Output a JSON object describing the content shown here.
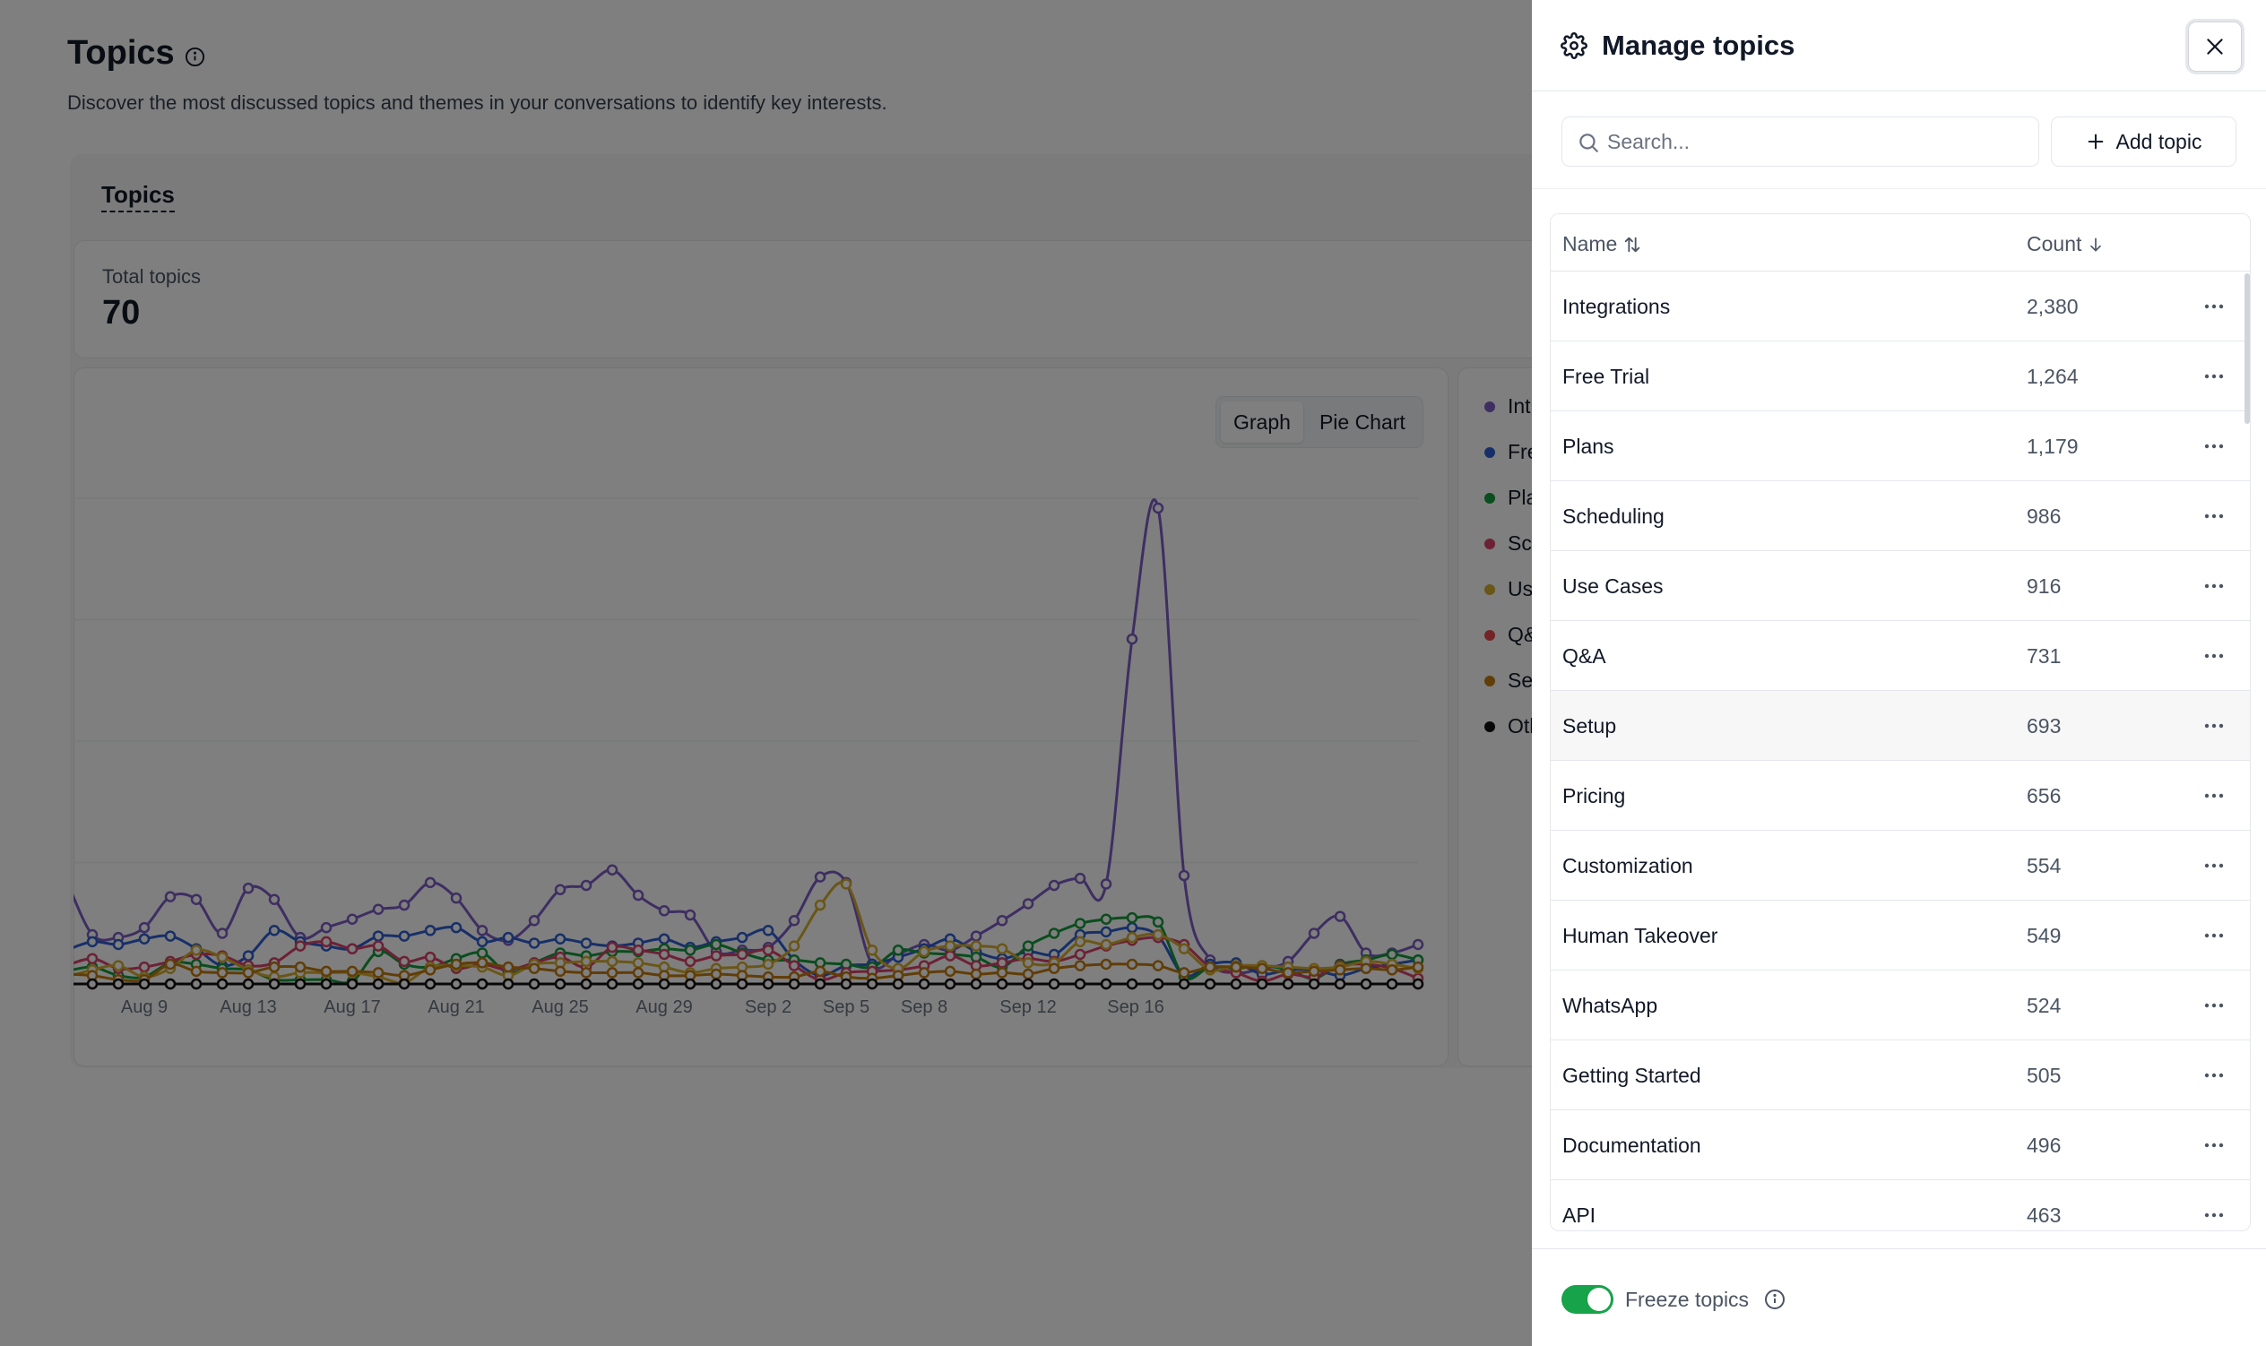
{
  "page": {
    "title": "Topics",
    "subtitle": "Discover the most discussed topics and themes in your conversations to identify key interests.",
    "tab_label": "Topics",
    "total_label": "Total topics",
    "total_value": "70"
  },
  "view_toggle": {
    "graph": "Graph",
    "pie": "Pie Chart",
    "active": "graph"
  },
  "legend": [
    {
      "label": "Int",
      "color": "#7c5cc4"
    },
    {
      "label": "Fre",
      "color": "#2f5fd0"
    },
    {
      "label": "Pla",
      "color": "#159a3c"
    },
    {
      "label": "Sc",
      "color": "#d8436b"
    },
    {
      "label": "Us",
      "color": "#d5ad2f"
    },
    {
      "label": "Q&",
      "color": "#e5484d"
    },
    {
      "label": "Se",
      "color": "#c27b0e"
    },
    {
      "label": "Oth",
      "color": "#111111"
    }
  ],
  "chart_data": {
    "type": "line",
    "x_tick_labels": [
      "Aug 9",
      "Aug 13",
      "Aug 17",
      "Aug 21",
      "Aug 25",
      "Aug 29",
      "Sep 2",
      "Sep 5",
      "Sep 8",
      "Sep 12",
      "Sep 16"
    ],
    "gridlines": true,
    "legend_position": "right",
    "series": [
      {
        "color": "#7c5cc4",
        "values": [
          74,
          35,
          33,
          40,
          62,
          60,
          36,
          68,
          60,
          33,
          40,
          46,
          53,
          56,
          72,
          61,
          38,
          31,
          45,
          67,
          70,
          81,
          63,
          52,
          49,
          23,
          24,
          26,
          45,
          76,
          72,
          14,
          21,
          28,
          24,
          34,
          45,
          57,
          70,
          75,
          71,
          245,
          338,
          77,
          17,
          8,
          11,
          16,
          36,
          48,
          22,
          22,
          28
        ]
      },
      {
        "color": "#2f5fd0",
        "values": [
          24,
          30,
          28,
          32,
          34,
          25,
          13,
          20,
          38,
          30,
          27,
          25,
          34,
          34,
          38,
          40,
          30,
          33,
          29,
          32,
          29,
          27,
          29,
          32,
          26,
          30,
          33,
          38,
          17,
          6,
          13,
          14,
          19,
          25,
          32,
          23,
          18,
          23,
          21,
          35,
          37,
          40,
          34,
          6,
          14,
          15,
          7,
          10,
          10,
          6,
          11,
          14,
          17
        ]
      },
      {
        "color": "#159a3c",
        "values": [
          9,
          12,
          6,
          5,
          15,
          14,
          11,
          10,
          3,
          3,
          3,
          2,
          23,
          14,
          12,
          18,
          22,
          8,
          15,
          22,
          20,
          23,
          23,
          25,
          24,
          28,
          22,
          17,
          17,
          15,
          14,
          12,
          24,
          22,
          21,
          19,
          12,
          27,
          36,
          43,
          46,
          47,
          44,
          5,
          12,
          11,
          13,
          10,
          4,
          14,
          17,
          21,
          17
        ]
      },
      {
        "color": "#d8436b",
        "values": [
          13,
          18,
          11,
          12,
          16,
          21,
          20,
          13,
          15,
          27,
          30,
          25,
          27,
          16,
          19,
          11,
          14,
          10,
          15,
          19,
          12,
          26,
          24,
          21,
          16,
          20,
          21,
          24,
          13,
          3,
          8,
          9,
          10,
          13,
          20,
          13,
          15,
          18,
          16,
          21,
          27,
          31,
          33,
          28,
          12,
          8,
          2,
          7,
          5,
          13,
          14,
          11,
          4
        ]
      },
      {
        "color": "#d5ad2f",
        "values": [
          5,
          10,
          13,
          5,
          11,
          24,
          19,
          10,
          5,
          8,
          8,
          8,
          5,
          1,
          12,
          13,
          12,
          6,
          14,
          15,
          16,
          16,
          15,
          12,
          8,
          11,
          12,
          14,
          27,
          56,
          71,
          24,
          11,
          23,
          27,
          27,
          25,
          15,
          15,
          30,
          28,
          33,
          35,
          25,
          10,
          13,
          13,
          12,
          11,
          12,
          16,
          14,
          11
        ]
      },
      {
        "color": "#e5484d",
        "values": [
          0,
          0,
          0,
          0,
          0,
          0,
          0,
          0,
          0,
          0,
          0,
          0,
          0,
          0,
          0,
          0,
          0,
          0,
          0,
          0,
          0,
          0,
          0,
          0,
          0,
          0,
          0,
          0,
          0,
          0,
          0,
          0,
          0,
          0,
          0,
          0,
          0,
          0,
          0,
          0,
          0,
          0,
          0,
          0,
          0,
          0,
          0,
          0,
          0,
          0,
          0,
          0,
          0
        ]
      },
      {
        "color": "#c27b0e",
        "values": [
          7,
          6,
          3,
          3,
          14,
          9,
          8,
          8,
          12,
          12,
          9,
          9,
          8,
          6,
          10,
          14,
          15,
          12,
          11,
          9,
          8,
          8,
          8,
          6,
          6,
          7,
          6,
          5,
          5,
          9,
          5,
          4,
          6,
          8,
          9,
          7,
          8,
          7,
          11,
          13,
          14,
          14,
          13,
          8,
          12,
          12,
          11,
          8,
          9,
          10,
          11,
          10,
          12
        ]
      },
      {
        "color": "#111111",
        "values": [
          0,
          0,
          0,
          0,
          0,
          0,
          0,
          0,
          0,
          0,
          0,
          0,
          0,
          0,
          0,
          0,
          0,
          0,
          0,
          0,
          0,
          0,
          0,
          0,
          0,
          0,
          0,
          0,
          0,
          0,
          0,
          0,
          0,
          0,
          0,
          0,
          0,
          0,
          0,
          0,
          0,
          0,
          0,
          0,
          0,
          0,
          0,
          0,
          0,
          0,
          0,
          0,
          0
        ]
      }
    ]
  },
  "drawer": {
    "title": "Manage topics",
    "search_placeholder": "Search...",
    "add_topic_label": "Add topic",
    "columns": {
      "name": "Name",
      "count": "Count"
    },
    "rows": [
      {
        "name": "Integrations",
        "count": "2,380"
      },
      {
        "name": "Free Trial",
        "count": "1,264"
      },
      {
        "name": "Plans",
        "count": "1,179"
      },
      {
        "name": "Scheduling",
        "count": "986"
      },
      {
        "name": "Use Cases",
        "count": "916"
      },
      {
        "name": "Q&A",
        "count": "731"
      },
      {
        "name": "Setup",
        "count": "693"
      },
      {
        "name": "Pricing",
        "count": "656"
      },
      {
        "name": "Customization",
        "count": "554"
      },
      {
        "name": "Human Takeover",
        "count": "549"
      },
      {
        "name": "WhatsApp",
        "count": "524"
      },
      {
        "name": "Getting Started",
        "count": "505"
      },
      {
        "name": "Documentation",
        "count": "496"
      },
      {
        "name": "API",
        "count": "463"
      }
    ],
    "freeze_label": "Freeze topics",
    "freeze_on": true,
    "accent_color": "#16a34a"
  }
}
